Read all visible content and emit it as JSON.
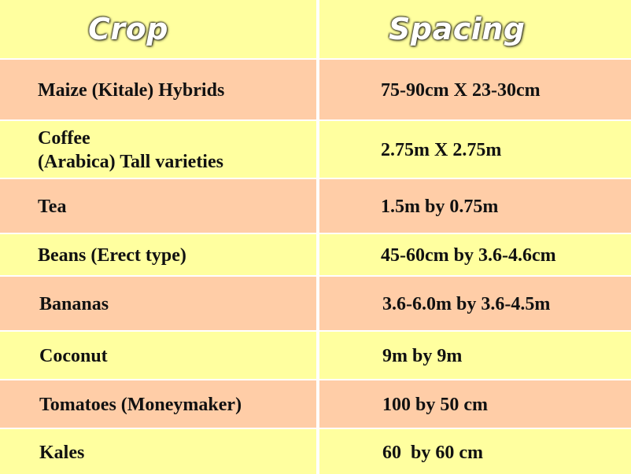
{
  "colors": {
    "header_bg": "#ffff9f",
    "yellow_row": "#ffff9f",
    "salmon_row": "#ffcda7",
    "divider": "#ffffff"
  },
  "header": {
    "crop": "Crop",
    "spacing": "Spacing"
  },
  "rows": [
    {
      "crop": "Maize (Kitale) Hybrids",
      "spacing": "75-90cm X 23-30cm",
      "color": "salmon"
    },
    {
      "crop": "Coffee\n(Arabica) Tall varieties",
      "spacing": "2.75m X 2.75m",
      "color": "yellow"
    },
    {
      "crop": "Tea",
      "spacing": "1.5m by 0.75m",
      "color": "salmon"
    },
    {
      "crop": "Beans (Erect type)",
      "spacing": "45-60cm by 3.6-4.6cm",
      "color": "yellow"
    },
    {
      "crop": "Bananas",
      "spacing": "3.6-6.0m by 3.6-4.5m",
      "color": "salmon"
    },
    {
      "crop": "Coconut",
      "spacing": "9m by 9m",
      "color": "yellow"
    },
    {
      "crop": "Tomatoes (Moneymaker)",
      "spacing": "100 by 50 cm",
      "color": "salmon"
    },
    {
      "crop": "Kales",
      "spacing": "60  by 60 cm",
      "color": "yellow"
    }
  ]
}
